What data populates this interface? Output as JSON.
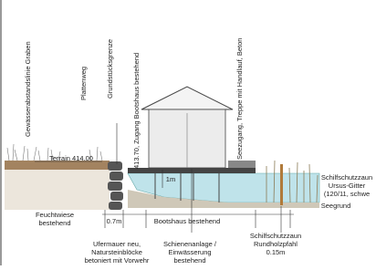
{
  "vertical_labels": [
    "Gewässerabstandslinie Graben",
    "Plattenweg",
    "Grundstücksgrenze",
    "413.70, Zugang Bootshaus bestehend",
    "Seezugang, Treppe mit Handlauf, Beton"
  ],
  "terrain": "Terrain 414.00",
  "height_label": "1m",
  "reed_fence_right": [
    "Schilfschutzzaun",
    "Ursus-Gitter",
    "(120/11, schwe"
  ],
  "lake_bed": "Seegrund",
  "meadow": [
    "Feuchtwiese",
    "bestehend"
  ],
  "dimensions": [
    "0.7m",
    "Bootshaus bestehend"
  ],
  "wall": [
    "Ufermauer neu,",
    "Natursteinblöcke",
    "betoniert mit Vorwehr"
  ],
  "rails": [
    "Schienenanlage /",
    "Einwässerung",
    "bestehend"
  ],
  "post_fence": [
    "Schilfschutzzaun",
    "Rundholzpfahl",
    "0.15m"
  ]
}
